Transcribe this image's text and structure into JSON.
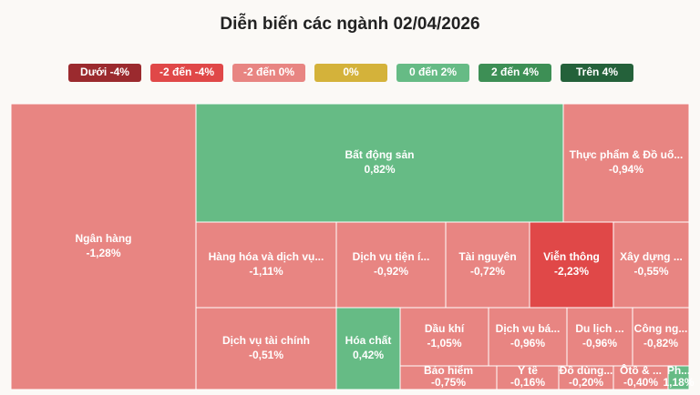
{
  "chart_data": {
    "type": "treemap",
    "title": "Diễn biến các ngành 02/04/2026",
    "legend": [
      {
        "label": "Dưới -4%",
        "color": "#9b2a2e"
      },
      {
        "label": "-2 đến -4%",
        "color": "#e04848"
      },
      {
        "label": "-2 đến 0%",
        "color": "#e88582"
      },
      {
        "label": "0%",
        "color": "#d4b23a"
      },
      {
        "label": "0 đến 2%",
        "color": "#66bb85"
      },
      {
        "label": "2 đến 4%",
        "color": "#3d8f55"
      },
      {
        "label": "Trên 4%",
        "color": "#24613a"
      }
    ],
    "categories": [
      "Ngân hàng",
      "Bất động sản",
      "Thực phẩm & Đồ uố...",
      "Hàng hóa và dịch vụ...",
      "Dịch vụ tiện í...",
      "Tài nguyên",
      "Viễn thông",
      "Xây dựng ...",
      "Dịch vụ tài chính",
      "Hóa chất",
      "Dầu khí",
      "Dịch vụ bá...",
      "Du lịch ...",
      "Công ng...",
      "Bảo hiểm",
      "Y tế",
      "Đồ dùng...",
      "Ôtô & ...",
      "Ph..."
    ],
    "values": [
      -1.28,
      0.82,
      -0.94,
      -1.11,
      -0.92,
      -0.72,
      -2.23,
      -0.55,
      -0.51,
      0.42,
      -1.05,
      -0.96,
      -0.96,
      -0.82,
      -0.75,
      -0.16,
      -0.2,
      -0.4,
      1.18
    ],
    "value_labels": [
      "-1,28%",
      "0,82%",
      "-0,94%",
      "-1,11%",
      "-0,92%",
      "-0,72%",
      "-2,23%",
      "-0,55%",
      "-0,51%",
      "0,42%",
      "-1,05%",
      "-0,96%",
      "-0,96%",
      "-0,82%",
      "-0,75%",
      "-0,16%",
      "-0,20%",
      "-0,40%",
      "1,18%"
    ],
    "colors": [
      "#e88582",
      "#66bb85",
      "#e88582",
      "#e88582",
      "#e88582",
      "#e88582",
      "#e04848",
      "#e88582",
      "#e88582",
      "#66bb85",
      "#e88582",
      "#e88582",
      "#e88582",
      "#e88582",
      "#e88582",
      "#e88582",
      "#e88582",
      "#e88582",
      "#66bb85"
    ]
  }
}
